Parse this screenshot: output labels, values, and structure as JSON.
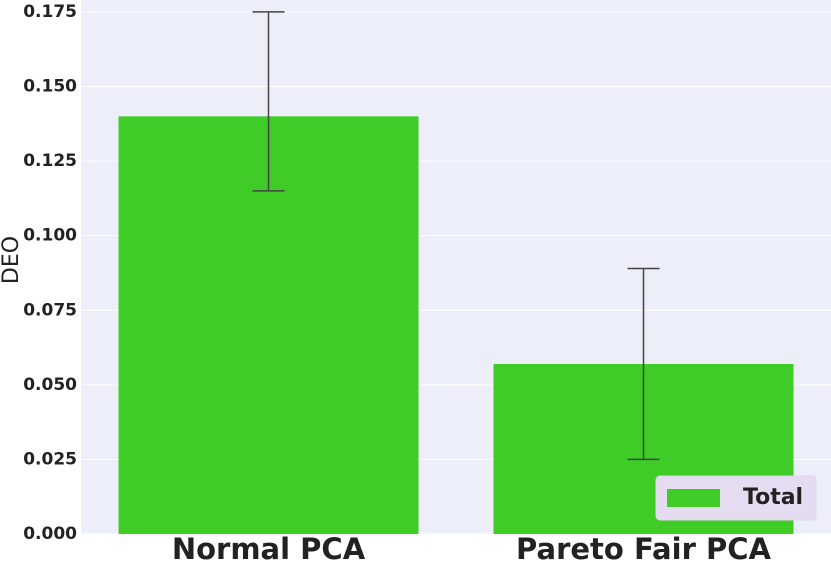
{
  "chart_data": {
    "type": "bar",
    "y_label": "DEO",
    "categories": [
      "Normal PCA",
      "Pareto Fair PCA"
    ],
    "series": [
      {
        "name": "Total",
        "color": "#3fcc27",
        "values": [
          0.14,
          0.057
        ],
        "error_low": [
          0.115,
          0.025
        ],
        "error_high": [
          0.175,
          0.089
        ]
      }
    ],
    "ylim": [
      0,
      0.179
    ],
    "yticks": [
      {
        "value": 0,
        "label": "0.000"
      },
      {
        "value": 0.025,
        "label": "0.025"
      },
      {
        "value": 0.05,
        "label": "0.050"
      },
      {
        "value": 0.075,
        "label": "0.075"
      },
      {
        "value": 0.1,
        "label": "0.100"
      },
      {
        "value": 0.125,
        "label": "0.125"
      },
      {
        "value": 0.15,
        "label": "0.150"
      },
      {
        "value": 0.175,
        "label": "0.175"
      }
    ],
    "grid": true,
    "legend": "lower right"
  }
}
